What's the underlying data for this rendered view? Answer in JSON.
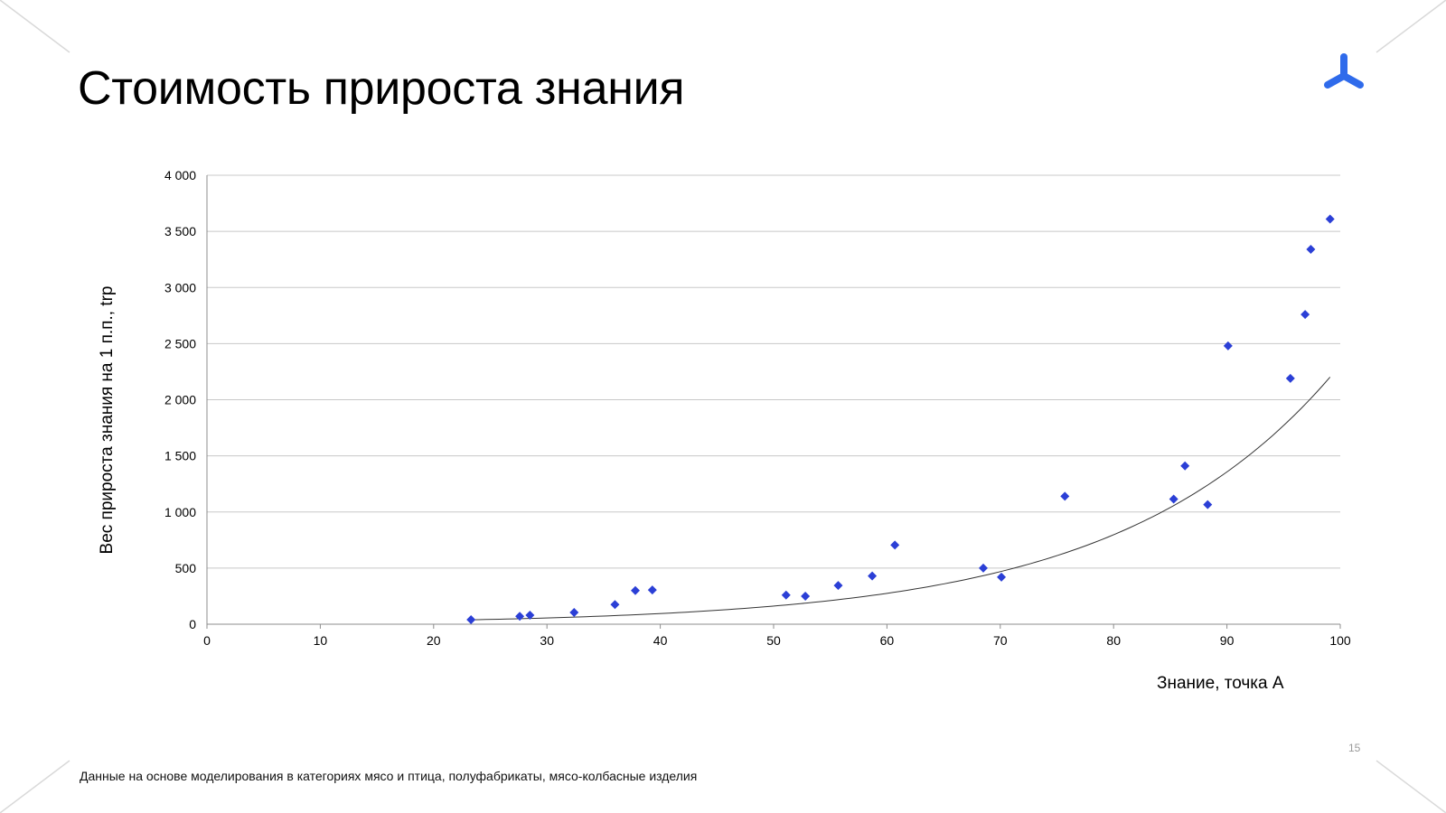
{
  "slide": {
    "title": "Стоимость прироста знания",
    "footnote": "Данные на основе моделирования в категориях мясо и птица, полуфабрикаты, мясо-колбасные изделия",
    "page_number": "15",
    "logo_color": "#2F6BEB"
  },
  "chart_data": {
    "type": "scatter",
    "title": "",
    "xlabel": "Знание, точка А",
    "ylabel": "Вес прироста знания на 1 п.п., trp",
    "xlim": [
      0,
      100
    ],
    "ylim": [
      0,
      4000
    ],
    "x_ticks": [
      0,
      10,
      20,
      30,
      40,
      50,
      60,
      70,
      80,
      90,
      100
    ],
    "y_ticks": [
      0,
      500,
      1000,
      1500,
      2000,
      2500,
      3000,
      3500,
      4000
    ],
    "x_tick_labels": [
      "0",
      "10",
      "20",
      "30",
      "40",
      "50",
      "60",
      "70",
      "80",
      "90",
      "100"
    ],
    "y_tick_labels": [
      "0",
      "500",
      "1 000",
      "1 500",
      "2 000",
      "2 500",
      "3 000",
      "3 500",
      "4 000"
    ],
    "grid": "horizontal",
    "marker_color": "#2B3FD6",
    "trendline_color": "#333333",
    "series": [
      {
        "points": [
          [
            23.3,
            40
          ],
          [
            27.6,
            70
          ],
          [
            28.5,
            80
          ],
          [
            32.4,
            105
          ],
          [
            36.0,
            175
          ],
          [
            37.8,
            300
          ],
          [
            39.3,
            305
          ],
          [
            51.1,
            260
          ],
          [
            52.8,
            250
          ],
          [
            55.7,
            345
          ],
          [
            58.7,
            430
          ],
          [
            60.7,
            705
          ],
          [
            68.5,
            500
          ],
          [
            70.1,
            420
          ],
          [
            75.7,
            1140
          ],
          [
            85.3,
            1115
          ],
          [
            86.3,
            1410
          ],
          [
            88.3,
            1065
          ],
          [
            90.1,
            2480
          ],
          [
            95.6,
            2190
          ],
          [
            96.9,
            2760
          ],
          [
            97.4,
            3340
          ],
          [
            99.1,
            3610
          ]
        ]
      }
    ],
    "trendline": {
      "type": "exponential",
      "x_range": [
        23.3,
        99.1
      ],
      "a": 11.3,
      "b": 0.0532
    }
  }
}
